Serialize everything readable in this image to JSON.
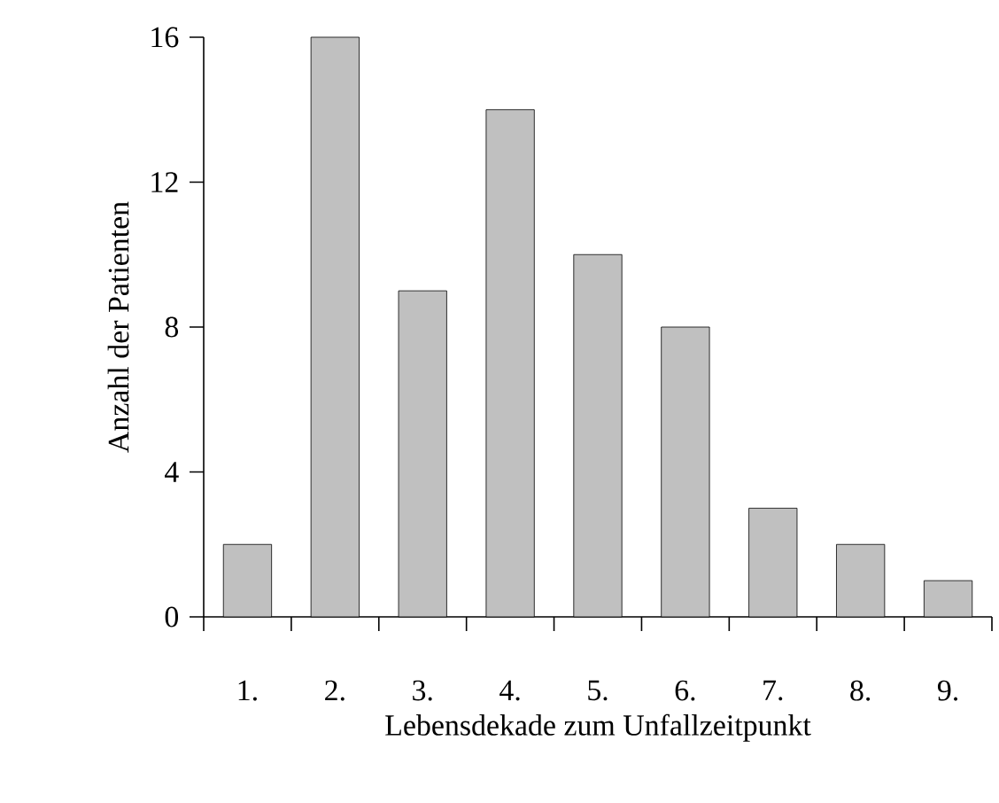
{
  "chart_data": {
    "type": "bar",
    "xlabel": "Lebensdekade zum Unfallzeitpunkt",
    "ylabel": "Anzahl der Patienten",
    "categories": [
      "1.",
      "2.",
      "3.",
      "4.",
      "5.",
      "6.",
      "7.",
      "8.",
      "9."
    ],
    "values": [
      2,
      16,
      9,
      14,
      10,
      8,
      3,
      2,
      1
    ],
    "color": "#c0c0c0",
    "ylim": [
      0,
      16
    ],
    "yticks": [
      0,
      4,
      8,
      12,
      16
    ]
  }
}
